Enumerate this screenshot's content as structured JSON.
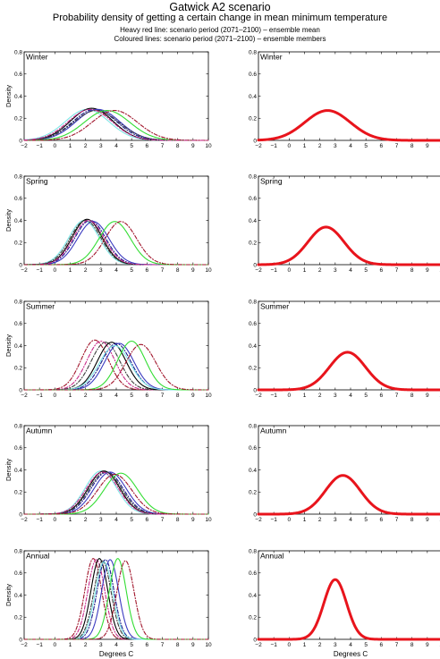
{
  "header": {
    "title": "Gatwick A2 scenario",
    "subtitle": "Probability density of getting a certain change in mean minimum temperature",
    "note_1": "Heavy red line: scenario period (2071–2100) – ensemble mean",
    "note_2": "Coloured lines: scenario period (2071–2100) – ensemble members"
  },
  "colors": {
    "ensemble_mean": "#e8141c",
    "member_palette": [
      "#000000",
      "#1a1a8c",
      "#3a3ac0",
      "#7ee6e6",
      "#33dd33",
      "#a0142a",
      "#3c3c3c",
      "#c82a8a"
    ]
  },
  "chart_data": [
    {
      "type": "line",
      "panel": "members",
      "title": "Winter",
      "xlabel": "",
      "ylabel": "Density",
      "xlim": [
        -2,
        10
      ],
      "ylim": [
        0,
        0.8
      ],
      "xticks": [
        "−2",
        "−1",
        "0",
        "1",
        "2",
        "3",
        "4",
        "5",
        "6",
        "7",
        "8",
        "9",
        "10"
      ],
      "yticks": [
        "0",
        "0.2",
        "0.4",
        "0.6",
        "0.8"
      ],
      "series": [
        {
          "color": "#7ee6e6",
          "style": "solid",
          "mean": 2.1,
          "peak": 0.28
        },
        {
          "color": "#000000",
          "style": "solid",
          "mean": 2.4,
          "peak": 0.29
        },
        {
          "color": "#1a1a8c",
          "style": "dashdot",
          "mean": 2.6,
          "peak": 0.28
        },
        {
          "color": "#3a3ac0",
          "style": "solid",
          "mean": 2.8,
          "peak": 0.28
        },
        {
          "color": "#3c3c3c",
          "style": "dashdot",
          "mean": 2.7,
          "peak": 0.27
        },
        {
          "color": "#33dd33",
          "style": "solid",
          "mean": 3.4,
          "peak": 0.27
        },
        {
          "color": "#a0142a",
          "style": "dashdot",
          "mean": 3.9,
          "peak": 0.27
        },
        {
          "color": "#c82a8a",
          "style": "dashdot",
          "mean": 2.3,
          "peak": 0.28
        }
      ]
    },
    {
      "type": "line",
      "panel": "mean",
      "title": "Winter",
      "xlabel": "",
      "ylabel": "",
      "xlim": [
        -2,
        10
      ],
      "ylim": [
        0,
        0.8
      ],
      "xticks": [
        "−2",
        "−1",
        "0",
        "1",
        "2",
        "3",
        "4",
        "5",
        "6",
        "7",
        "8",
        "9",
        "10"
      ],
      "yticks": [
        "0",
        "0.2",
        "0.4",
        "0.6",
        "0.8"
      ],
      "series": [
        {
          "color": "#e8141c",
          "style": "heavy",
          "mean": 2.5,
          "peak": 0.27
        }
      ]
    },
    {
      "type": "line",
      "panel": "members",
      "title": "Spring",
      "xlabel": "",
      "ylabel": "Density",
      "xlim": [
        -2,
        10
      ],
      "ylim": [
        0,
        0.8
      ],
      "xticks": [
        "−2",
        "−1",
        "0",
        "1",
        "2",
        "3",
        "4",
        "5",
        "6",
        "7",
        "8",
        "9",
        "10"
      ],
      "yticks": [
        "0",
        "0.2",
        "0.4",
        "0.6",
        "0.8"
      ],
      "series": [
        {
          "color": "#7ee6e6",
          "style": "solid",
          "mean": 1.9,
          "peak": 0.4
        },
        {
          "color": "#000000",
          "style": "solid",
          "mean": 2.1,
          "peak": 0.41
        },
        {
          "color": "#1a1a8c",
          "style": "dashdot",
          "mean": 2.3,
          "peak": 0.4
        },
        {
          "color": "#3a3ac0",
          "style": "solid",
          "mean": 2.5,
          "peak": 0.39
        },
        {
          "color": "#3c3c3c",
          "style": "dashdot",
          "mean": 2.0,
          "peak": 0.4
        },
        {
          "color": "#c82a8a",
          "style": "dashdot",
          "mean": 2.2,
          "peak": 0.4
        },
        {
          "color": "#33dd33",
          "style": "solid",
          "mean": 3.9,
          "peak": 0.39
        },
        {
          "color": "#a0142a",
          "style": "dashdot",
          "mean": 4.3,
          "peak": 0.39
        }
      ]
    },
    {
      "type": "line",
      "panel": "mean",
      "title": "Spring",
      "xlabel": "",
      "ylabel": "",
      "xlim": [
        -2,
        10
      ],
      "ylim": [
        0,
        0.8
      ],
      "xticks": [
        "−2",
        "−1",
        "0",
        "1",
        "2",
        "3",
        "4",
        "5",
        "6",
        "7",
        "8",
        "9",
        "10"
      ],
      "yticks": [
        "0",
        "0.2",
        "0.4",
        "0.6",
        "0.8"
      ],
      "series": [
        {
          "color": "#e8141c",
          "style": "heavy",
          "mean": 2.4,
          "peak": 0.34
        }
      ]
    },
    {
      "type": "line",
      "panel": "members",
      "title": "Summer",
      "xlabel": "",
      "ylabel": "Density",
      "xlim": [
        -2,
        10
      ],
      "ylim": [
        0,
        0.8
      ],
      "xticks": [
        "−2",
        "−1",
        "0",
        "1",
        "2",
        "3",
        "4",
        "5",
        "6",
        "7",
        "8",
        "9",
        "10"
      ],
      "yticks": [
        "0",
        "0.2",
        "0.4",
        "0.6",
        "0.8"
      ],
      "series": [
        {
          "color": "#a0142a",
          "style": "dashdot",
          "mean": 2.6,
          "peak": 0.45
        },
        {
          "color": "#c82a8a",
          "style": "dashdot",
          "mean": 3.0,
          "peak": 0.44
        },
        {
          "color": "#3c3c3c",
          "style": "dashdot",
          "mean": 3.3,
          "peak": 0.43
        },
        {
          "color": "#000000",
          "style": "solid",
          "mean": 3.7,
          "peak": 0.43
        },
        {
          "color": "#1a1a8c",
          "style": "dashdot",
          "mean": 4.0,
          "peak": 0.42
        },
        {
          "color": "#3a3ac0",
          "style": "solid",
          "mean": 4.2,
          "peak": 0.42
        },
        {
          "color": "#7ee6e6",
          "style": "solid",
          "mean": 3.9,
          "peak": 0.4
        },
        {
          "color": "#33dd33",
          "style": "solid",
          "mean": 5.0,
          "peak": 0.44
        },
        {
          "color": "#a0142a",
          "style": "dashdot",
          "mean": 5.6,
          "peak": 0.41
        }
      ]
    },
    {
      "type": "line",
      "panel": "mean",
      "title": "Summer",
      "xlabel": "",
      "ylabel": "",
      "xlim": [
        -2,
        10
      ],
      "ylim": [
        0,
        0.8
      ],
      "xticks": [
        "−2",
        "−1",
        "0",
        "1",
        "2",
        "3",
        "4",
        "5",
        "6",
        "7",
        "8",
        "9",
        "10"
      ],
      "yticks": [
        "0",
        "0.2",
        "0.4",
        "0.6",
        "0.8"
      ],
      "series": [
        {
          "color": "#e8141c",
          "style": "heavy",
          "mean": 3.8,
          "peak": 0.34
        }
      ]
    },
    {
      "type": "line",
      "panel": "members",
      "title": "Autumn",
      "xlabel": "",
      "ylabel": "Density",
      "xlim": [
        -2,
        10
      ],
      "ylim": [
        0,
        0.8
      ],
      "xticks": [
        "−2",
        "−1",
        "0",
        "1",
        "2",
        "3",
        "4",
        "5",
        "6",
        "7",
        "8",
        "9",
        "10"
      ],
      "yticks": [
        "0",
        "0.2",
        "0.4",
        "0.6",
        "0.8"
      ],
      "series": [
        {
          "color": "#7ee6e6",
          "style": "solid",
          "mean": 3.0,
          "peak": 0.39
        },
        {
          "color": "#000000",
          "style": "solid",
          "mean": 3.2,
          "peak": 0.39
        },
        {
          "color": "#1a1a8c",
          "style": "dashdot",
          "mean": 3.4,
          "peak": 0.38
        },
        {
          "color": "#3a3ac0",
          "style": "solid",
          "mean": 3.6,
          "peak": 0.38
        },
        {
          "color": "#3c3c3c",
          "style": "dashdot",
          "mean": 3.3,
          "peak": 0.38
        },
        {
          "color": "#c82a8a",
          "style": "dashdot",
          "mean": 3.1,
          "peak": 0.38
        },
        {
          "color": "#33dd33",
          "style": "solid",
          "mean": 4.3,
          "peak": 0.37
        },
        {
          "color": "#a0142a",
          "style": "dashdot",
          "mean": 3.9,
          "peak": 0.36
        }
      ]
    },
    {
      "type": "line",
      "panel": "mean",
      "title": "Autumn",
      "xlabel": "",
      "ylabel": "",
      "xlim": [
        -2,
        10
      ],
      "ylim": [
        0,
        0.8
      ],
      "xticks": [
        "−2",
        "−1",
        "0",
        "1",
        "2",
        "3",
        "4",
        "5",
        "6",
        "7",
        "8",
        "9",
        "10"
      ],
      "yticks": [
        "0",
        "0.2",
        "0.4",
        "0.6",
        "0.8"
      ],
      "series": [
        {
          "color": "#e8141c",
          "style": "heavy",
          "mean": 3.5,
          "peak": 0.35
        }
      ]
    },
    {
      "type": "line",
      "panel": "members",
      "title": "Annual",
      "xlabel": "Degrees C",
      "ylabel": "Density",
      "xlim": [
        -2,
        10
      ],
      "ylim": [
        0,
        0.8
      ],
      "xticks": [
        "−2",
        "−1",
        "0",
        "1",
        "2",
        "3",
        "4",
        "5",
        "6",
        "7",
        "8",
        "9",
        "10"
      ],
      "yticks": [
        "0",
        "0.2",
        "0.4",
        "0.6",
        "0.8"
      ],
      "series": [
        {
          "color": "#a0142a",
          "style": "dashdot",
          "mean": 2.5,
          "peak": 0.73
        },
        {
          "color": "#c82a8a",
          "style": "dashdot",
          "mean": 2.7,
          "peak": 0.72
        },
        {
          "color": "#000000",
          "style": "solid",
          "mean": 2.9,
          "peak": 0.73
        },
        {
          "color": "#3c3c3c",
          "style": "dashdot",
          "mean": 3.1,
          "peak": 0.71
        },
        {
          "color": "#1a1a8c",
          "style": "dashdot",
          "mean": 3.3,
          "peak": 0.72
        },
        {
          "color": "#3a3ac0",
          "style": "solid",
          "mean": 3.6,
          "peak": 0.72
        },
        {
          "color": "#7ee6e6",
          "style": "solid",
          "mean": 3.2,
          "peak": 0.7
        },
        {
          "color": "#33dd33",
          "style": "solid",
          "mean": 4.1,
          "peak": 0.73
        },
        {
          "color": "#a0142a",
          "style": "dashdot",
          "mean": 4.6,
          "peak": 0.71
        }
      ]
    },
    {
      "type": "line",
      "panel": "mean",
      "title": "Annual",
      "xlabel": "Degrees C",
      "ylabel": "",
      "xlim": [
        -2,
        10
      ],
      "ylim": [
        0,
        0.8
      ],
      "xticks": [
        "−2",
        "−1",
        "0",
        "1",
        "2",
        "3",
        "4",
        "5",
        "6",
        "7",
        "8",
        "9",
        "10"
      ],
      "yticks": [
        "0",
        "0.2",
        "0.4",
        "0.6",
        "0.8"
      ],
      "series": [
        {
          "color": "#e8141c",
          "style": "heavy",
          "mean": 3.0,
          "peak": 0.54
        }
      ]
    }
  ]
}
